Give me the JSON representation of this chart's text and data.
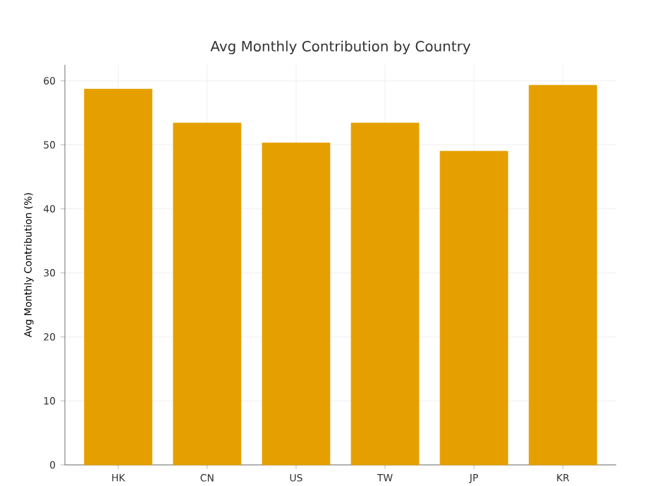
{
  "chart_data": {
    "type": "bar",
    "title": "Avg Monthly Contribution by Country",
    "ylabel": "Avg Monthly Contribution (%)",
    "categories": [
      "HK",
      "CN",
      "US",
      "TW",
      "JP",
      "KR"
    ],
    "values": [
      58.7,
      53.4,
      50.3,
      53.4,
      49.0,
      59.3
    ],
    "color": "#e5a000",
    "ylim": [
      0,
      62.5
    ],
    "yticks": [
      0,
      10,
      20,
      30,
      40,
      50,
      60
    ],
    "grid": true
  }
}
